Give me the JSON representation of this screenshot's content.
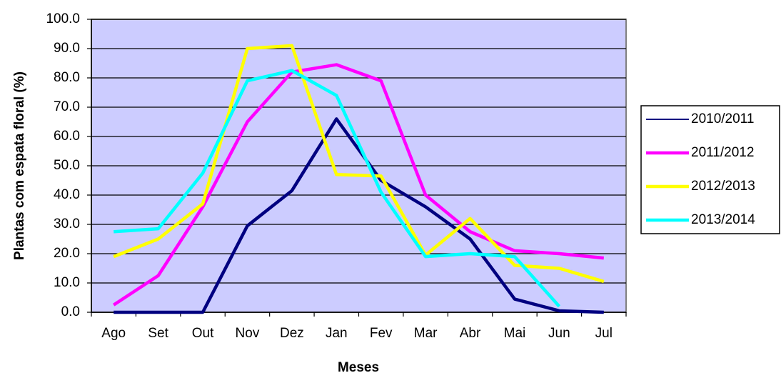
{
  "chart_data": {
    "type": "line",
    "x_label": "Meses",
    "y_label": "Plantas com espata floral (%)",
    "categories": [
      "Ago",
      "Set",
      "Out",
      "Nov",
      "Dez",
      "Jan",
      "Fev",
      "Mar",
      "Abr",
      "Mai",
      "Jun",
      "Jul"
    ],
    "series": [
      {
        "name": "2010/2011",
        "color": "#000080",
        "values": [
          0,
          0,
          0,
          29.5,
          41.5,
          66,
          45,
          36,
          25,
          4.5,
          0.5,
          0
        ]
      },
      {
        "name": "2011/2012",
        "color": "#ff00ff",
        "values": [
          2.5,
          12.5,
          36,
          65,
          82,
          84.5,
          79,
          40,
          27.5,
          21,
          20,
          18.5
        ]
      },
      {
        "name": "2012/2013",
        "color": "#ffff00",
        "values": [
          19,
          25,
          37,
          90,
          91,
          47,
          46.5,
          19.5,
          32,
          16,
          15,
          10.5
        ]
      },
      {
        "name": "2013/2014",
        "color": "#00ffff",
        "values": [
          27.5,
          28.5,
          47.5,
          79,
          82.5,
          74,
          41,
          19,
          20,
          19,
          2,
          null
        ]
      }
    ],
    "ylim": [
      0,
      100
    ],
    "yticks": [
      {
        "value": 0,
        "label": "0.0"
      },
      {
        "value": 10,
        "label": "10.0"
      },
      {
        "value": 20,
        "label": "20.0"
      },
      {
        "value": 30,
        "label": "30.0"
      },
      {
        "value": 40,
        "label": "40.0"
      },
      {
        "value": 50,
        "label": "50.0"
      },
      {
        "value": 60,
        "label": "60.0"
      },
      {
        "value": 70,
        "label": "70.0"
      },
      {
        "value": 80,
        "label": "80.0"
      },
      {
        "value": 90,
        "label": "90.0"
      },
      {
        "value": 100,
        "label": "100.0"
      }
    ],
    "grid": true,
    "legend": "right"
  }
}
